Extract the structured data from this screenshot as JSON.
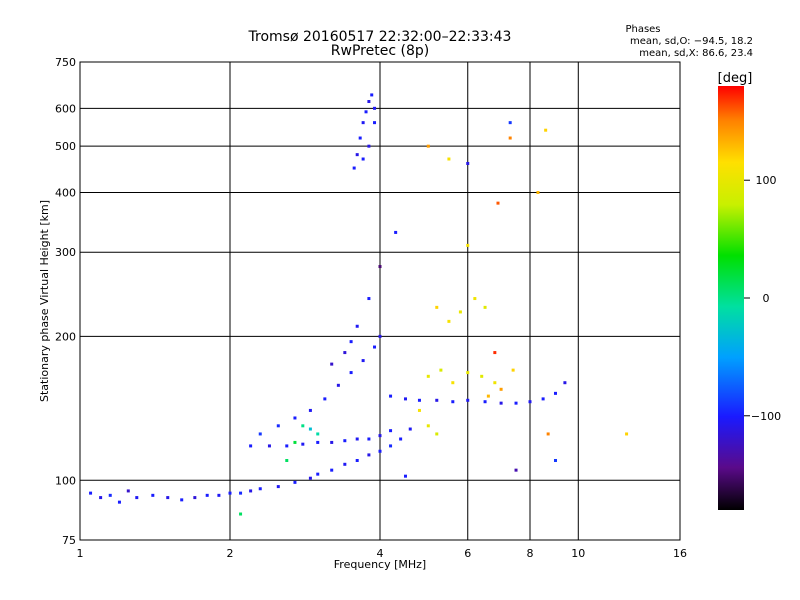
{
  "header": {
    "title": "Tromsø 20160517 22:32:00–22:33:43",
    "subtitle": "RwPretec (8p)",
    "phases_label": "Phases",
    "phase_o": "mean, sd,O: −94.5, 18.2",
    "phase_x": "mean, sd,X:  86.6, 23.4"
  },
  "colorbar": {
    "label": "[deg]",
    "ticks": [
      "100",
      "0",
      "−100"
    ],
    "tick_values": [
      100,
      0,
      -100
    ],
    "range": [
      -180,
      180
    ],
    "colormap": "rainbow"
  },
  "chart_data": {
    "type": "scatter",
    "xlabel": "Frequency [MHz]",
    "ylabel": "Stationary phase Virtual Height [km]",
    "x_scale": "log",
    "y_scale": "log",
    "xlim": [
      1,
      16
    ],
    "ylim": [
      75,
      750
    ],
    "x_ticks": [
      "1",
      "2",
      "4",
      "6",
      "8",
      "10",
      "16"
    ],
    "x_tick_values": [
      1,
      2,
      4,
      6,
      8,
      10,
      16
    ],
    "y_ticks": [
      "75",
      "100",
      "200",
      "300",
      "400",
      "500",
      "600",
      "750"
    ],
    "y_tick_values": [
      75,
      100,
      200,
      300,
      400,
      500,
      600,
      750
    ],
    "grid": true,
    "series": [
      {
        "points": [
          [
            1.05,
            94,
            -100
          ],
          [
            1.1,
            92,
            -110
          ],
          [
            1.15,
            93,
            -95
          ],
          [
            1.2,
            90,
            -100
          ],
          [
            1.25,
            95,
            -120
          ],
          [
            1.3,
            92,
            -105
          ],
          [
            1.4,
            93,
            -100
          ],
          [
            1.5,
            92,
            -110
          ],
          [
            1.6,
            91,
            -100
          ],
          [
            1.7,
            92,
            -115
          ],
          [
            1.8,
            93,
            -100
          ],
          [
            1.9,
            93,
            -105
          ],
          [
            2.0,
            94,
            -100
          ],
          [
            2.1,
            94,
            -95
          ],
          [
            2.2,
            95,
            -110
          ],
          [
            2.3,
            96,
            -100
          ],
          [
            2.5,
            97,
            -105
          ],
          [
            2.7,
            99,
            -100
          ],
          [
            2.9,
            101,
            -110
          ],
          [
            3.0,
            103,
            -100
          ],
          [
            3.2,
            105,
            -100
          ],
          [
            3.4,
            108,
            -105
          ],
          [
            3.6,
            110,
            -100
          ],
          [
            3.8,
            113,
            -110
          ],
          [
            4.0,
            115,
            -100
          ],
          [
            4.2,
            118,
            -95
          ],
          [
            4.4,
            122,
            -100
          ],
          [
            4.6,
            128,
            -105
          ],
          [
            2.2,
            118,
            -100
          ],
          [
            2.4,
            118,
            -110
          ],
          [
            2.6,
            118,
            -100
          ],
          [
            2.8,
            119,
            -105
          ],
          [
            3.0,
            120,
            -100
          ],
          [
            3.2,
            120,
            -110
          ],
          [
            3.4,
            121,
            -100
          ],
          [
            3.6,
            122,
            -105
          ],
          [
            3.8,
            122,
            -100
          ],
          [
            4.0,
            124,
            -110
          ],
          [
            4.2,
            127,
            -100
          ],
          [
            2.3,
            125,
            -90
          ],
          [
            2.5,
            130,
            -95
          ],
          [
            2.7,
            135,
            -100
          ],
          [
            2.9,
            140,
            -105
          ],
          [
            3.1,
            148,
            -100
          ],
          [
            3.3,
            158,
            -110
          ],
          [
            3.5,
            168,
            -100
          ],
          [
            3.7,
            178,
            -105
          ],
          [
            3.9,
            190,
            -100
          ],
          [
            4.0,
            200,
            -110
          ],
          [
            3.2,
            175,
            -120
          ],
          [
            3.4,
            185,
            -115
          ],
          [
            3.5,
            195,
            -100
          ],
          [
            3.6,
            210,
            -105
          ],
          [
            3.8,
            240,
            -100
          ],
          [
            4.2,
            150,
            -100
          ],
          [
            4.5,
            148,
            -105
          ],
          [
            4.8,
            147,
            -100
          ],
          [
            5.2,
            147,
            -110
          ],
          [
            5.6,
            146,
            -100
          ],
          [
            6.0,
            147,
            -105
          ],
          [
            6.5,
            146,
            -100
          ],
          [
            7.0,
            145,
            -110
          ],
          [
            7.5,
            145,
            -100
          ],
          [
            8.0,
            146,
            -105
          ],
          [
            8.5,
            148,
            -100
          ],
          [
            9.0,
            152,
            -100
          ],
          [
            9.4,
            160,
            -110
          ],
          [
            3.55,
            450,
            -100
          ],
          [
            3.6,
            480,
            -110
          ],
          [
            3.65,
            520,
            -100
          ],
          [
            3.7,
            560,
            -105
          ],
          [
            3.75,
            590,
            -100
          ],
          [
            3.8,
            620,
            -110
          ],
          [
            3.85,
            640,
            -100
          ],
          [
            3.9,
            600,
            -105
          ],
          [
            3.7,
            470,
            -100
          ],
          [
            3.8,
            500,
            -110
          ],
          [
            3.9,
            560,
            -100
          ],
          [
            5.0,
            165,
            100
          ],
          [
            5.3,
            170,
            90
          ],
          [
            5.6,
            160,
            110
          ],
          [
            6.0,
            168,
            100
          ],
          [
            6.4,
            165,
            95
          ],
          [
            6.8,
            160,
            105
          ],
          [
            5.5,
            215,
            110
          ],
          [
            5.8,
            225,
            100
          ],
          [
            6.2,
            240,
            105
          ],
          [
            6.5,
            230,
            95
          ],
          [
            5.2,
            230,
            120
          ],
          [
            4.8,
            140,
            110
          ],
          [
            5.0,
            130,
            100
          ],
          [
            5.2,
            125,
            90
          ],
          [
            6.6,
            150,
            130
          ],
          [
            7.0,
            155,
            140
          ],
          [
            7.4,
            170,
            120
          ],
          [
            2.8,
            130,
            0
          ],
          [
            2.9,
            128,
            -30
          ],
          [
            3.0,
            125,
            -10
          ],
          [
            2.7,
            120,
            20
          ],
          [
            2.6,
            110,
            10
          ],
          [
            6.8,
            185,
            170
          ],
          [
            7.3,
            520,
            150
          ],
          [
            8.6,
            540,
            120
          ],
          [
            8.3,
            400,
            130
          ],
          [
            5.0,
            500,
            140
          ],
          [
            5.5,
            470,
            110
          ],
          [
            6.0,
            310,
            110
          ],
          [
            4.3,
            330,
            -100
          ],
          [
            4.0,
            280,
            -150
          ],
          [
            6.9,
            380,
            160
          ],
          [
            6.0,
            460,
            -110
          ],
          [
            7.3,
            560,
            -90
          ],
          [
            12.5,
            125,
            120
          ],
          [
            8.7,
            125,
            150
          ],
          [
            9.0,
            110,
            -90
          ],
          [
            7.5,
            105,
            -130
          ],
          [
            4.5,
            102,
            -100
          ],
          [
            2.1,
            85,
            10
          ]
        ]
      }
    ]
  }
}
